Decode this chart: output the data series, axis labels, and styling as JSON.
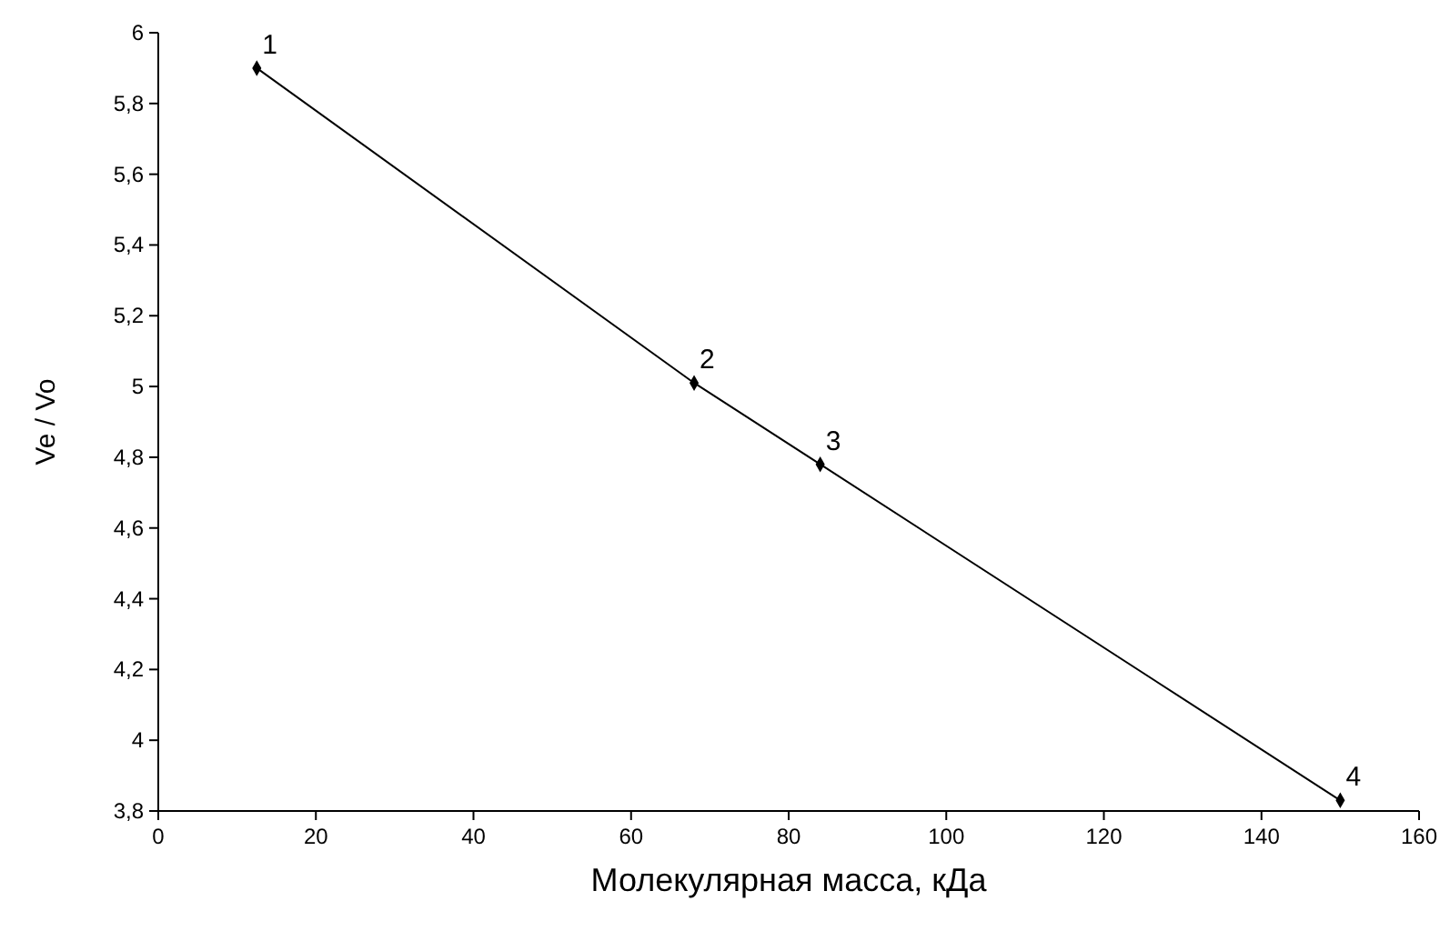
{
  "chart_data": {
    "type": "line",
    "xlabel": "Молекулярная масса, кДа",
    "ylabel": "Ve / Vo",
    "x": [
      12.5,
      68,
      84,
      150
    ],
    "values": [
      5.9,
      5.01,
      4.78,
      3.83
    ],
    "color": "#000000",
    "marker": "diamond",
    "line_style": "solid",
    "xlim": [
      0,
      160
    ],
    "xticks": [
      0,
      20,
      40,
      60,
      80,
      100,
      120,
      140,
      160
    ],
    "ylim": [
      3.8,
      6
    ],
    "yticks": [
      {
        "value": 3.8,
        "label": "3,8"
      },
      {
        "value": 4,
        "label": "4"
      },
      {
        "value": 4.2,
        "label": "4,2"
      },
      {
        "value": 4.4,
        "label": "4,4"
      },
      {
        "value": 4.6,
        "label": "4,6"
      },
      {
        "value": 4.8,
        "label": "4,8"
      },
      {
        "value": 5,
        "label": "5"
      },
      {
        "value": 5.2,
        "label": "5,2"
      },
      {
        "value": 5.4,
        "label": "5,4"
      },
      {
        "value": 5.6,
        "label": "5,6"
      },
      {
        "value": 5.8,
        "label": "5,8"
      },
      {
        "value": 6,
        "label": "6"
      }
    ],
    "annotations": [
      {
        "text": "1",
        "x": 12.5,
        "y": 5.9
      },
      {
        "text": "2",
        "x": 68,
        "y": 5.01
      },
      {
        "text": "3",
        "x": 84,
        "y": 4.78
      },
      {
        "text": "4",
        "x": 150,
        "y": 3.83
      }
    ]
  }
}
